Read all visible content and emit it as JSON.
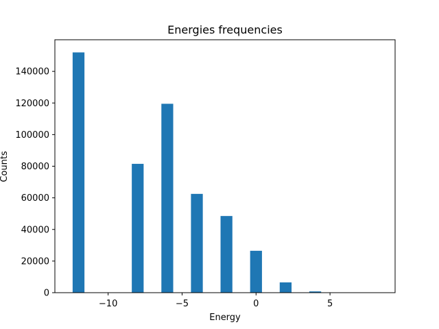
{
  "chart_data": {
    "type": "bar",
    "title": "Energies frequencies",
    "xlabel": "Energy",
    "ylabel": "Counts",
    "xlim": [
      -13.6,
      9.4
    ],
    "ylim": [
      0,
      160000
    ],
    "xticks": [
      -10,
      -5,
      0,
      5
    ],
    "xtick_labels": [
      "−10",
      "−5",
      "0",
      "5"
    ],
    "yticks": [
      0,
      20000,
      40000,
      60000,
      80000,
      100000,
      120000,
      140000
    ],
    "ytick_labels": [
      "0",
      "20000",
      "40000",
      "60000",
      "80000",
      "100000",
      "120000",
      "140000"
    ],
    "bin_width": 0.8,
    "bins": [
      {
        "x": -12,
        "value": 152000
      },
      {
        "x": -8,
        "value": 81500
      },
      {
        "x": -6,
        "value": 119500
      },
      {
        "x": -4,
        "value": 62500
      },
      {
        "x": -2,
        "value": 48500
      },
      {
        "x": 0,
        "value": 26500
      },
      {
        "x": 2,
        "value": 6500
      },
      {
        "x": 4,
        "value": 800
      }
    ],
    "bar_color": "#1f77b4",
    "grid": false,
    "legend": "none"
  }
}
